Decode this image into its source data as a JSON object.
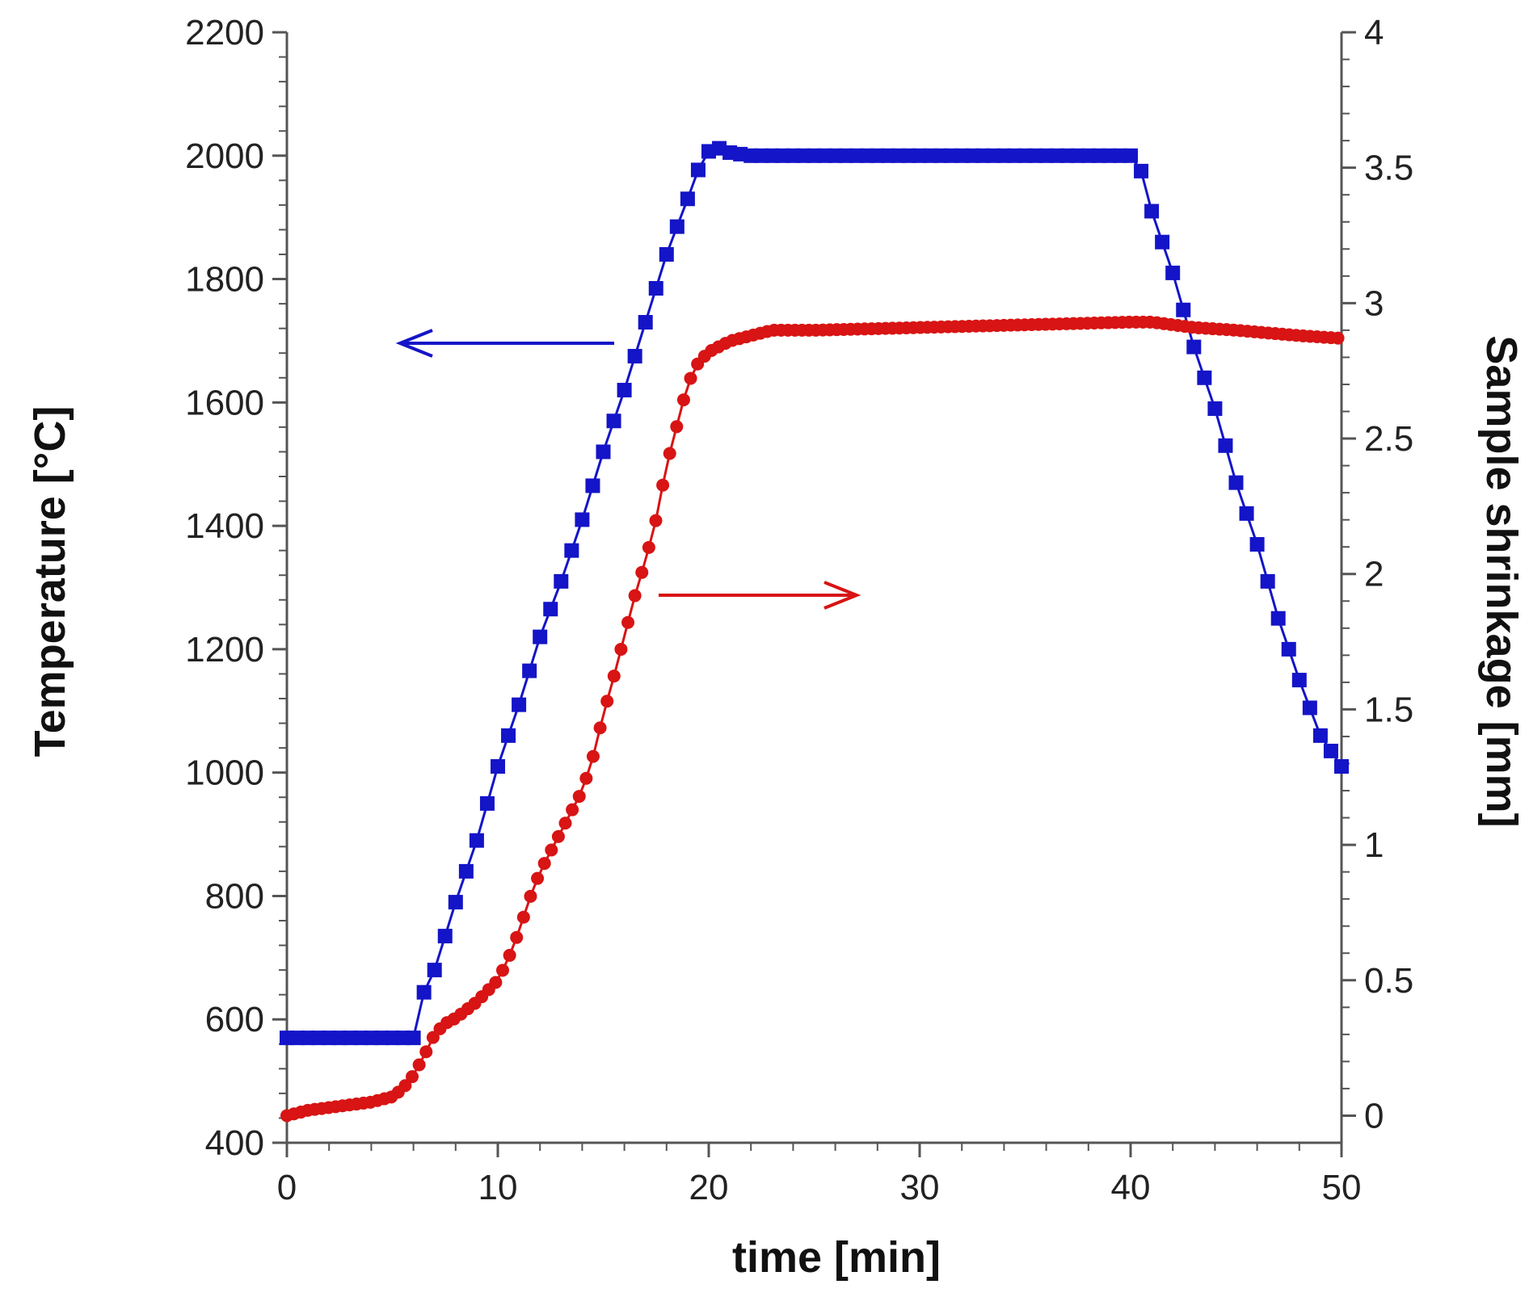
{
  "chart_data": {
    "type": "line",
    "title": "",
    "xlabel": "time [min]",
    "ylabel": "Temperature [°C]",
    "y2label": "Sample shrinkage [mm]",
    "xlim": [
      0,
      50
    ],
    "ylim": [
      400,
      2200
    ],
    "y2lim": [
      -0.1,
      4
    ],
    "xticks": [
      "0",
      "10",
      "20",
      "30",
      "40",
      "50"
    ],
    "yticks": [
      "400",
      "600",
      "800",
      "1000",
      "1200",
      "1400",
      "1600",
      "1800",
      "2000",
      "2200"
    ],
    "y2ticks": [
      "0",
      "0.5",
      "1",
      "1.5",
      "2",
      "2.5",
      "3",
      "3.5",
      "4"
    ],
    "grid": false,
    "series": [
      {
        "name": "Temperature",
        "axis": "left",
        "color": "#1414c8",
        "marker": "square",
        "points": [
          [
            0,
            570
          ],
          [
            5,
            570
          ],
          [
            6,
            570
          ],
          [
            6.1,
            615
          ],
          [
            7,
            680
          ],
          [
            8,
            790
          ],
          [
            9,
            890
          ],
          [
            10,
            1010
          ],
          [
            11,
            1110
          ],
          [
            12,
            1220
          ],
          [
            13,
            1310
          ],
          [
            14,
            1410
          ],
          [
            15,
            1520
          ],
          [
            16,
            1620
          ],
          [
            17,
            1730
          ],
          [
            18,
            1840
          ],
          [
            19,
            1930
          ],
          [
            19.8,
            2005
          ],
          [
            20.5,
            2012
          ],
          [
            21,
            2005
          ],
          [
            22,
            2000
          ],
          [
            30,
            2000
          ],
          [
            40,
            2000
          ],
          [
            40.5,
            1975
          ],
          [
            41,
            1910
          ],
          [
            42,
            1810
          ],
          [
            43,
            1690
          ],
          [
            44,
            1590
          ],
          [
            45,
            1470
          ],
          [
            46,
            1370
          ],
          [
            47,
            1250
          ],
          [
            48,
            1150
          ],
          [
            49,
            1060
          ],
          [
            50,
            1010
          ]
        ]
      },
      {
        "name": "Sample shrinkage",
        "axis": "right",
        "color": "#d81414",
        "marker": "circle",
        "points": [
          [
            0,
            0
          ],
          [
            1,
            0.02
          ],
          [
            2,
            0.03
          ],
          [
            3,
            0.04
          ],
          [
            4,
            0.05
          ],
          [
            5,
            0.07
          ],
          [
            5.5,
            0.1
          ],
          [
            6,
            0.15
          ],
          [
            6.5,
            0.22
          ],
          [
            7,
            0.3
          ],
          [
            7.5,
            0.34
          ],
          [
            8,
            0.36
          ],
          [
            9,
            0.42
          ],
          [
            10,
            0.5
          ],
          [
            10.5,
            0.58
          ],
          [
            11,
            0.68
          ],
          [
            11.5,
            0.8
          ],
          [
            12,
            0.9
          ],
          [
            13,
            1.05
          ],
          [
            14,
            1.2
          ],
          [
            14.5,
            1.32
          ],
          [
            15,
            1.48
          ],
          [
            15.5,
            1.62
          ],
          [
            16,
            1.77
          ],
          [
            16.5,
            1.92
          ],
          [
            17,
            2.05
          ],
          [
            17.5,
            2.2
          ],
          [
            18,
            2.4
          ],
          [
            18.5,
            2.55
          ],
          [
            19,
            2.7
          ],
          [
            19.5,
            2.78
          ],
          [
            20,
            2.82
          ],
          [
            21,
            2.86
          ],
          [
            22,
            2.88
          ],
          [
            23,
            2.9
          ],
          [
            25,
            2.9
          ],
          [
            30,
            2.91
          ],
          [
            35,
            2.92
          ],
          [
            40,
            2.93
          ],
          [
            41,
            2.93
          ],
          [
            42,
            2.92
          ],
          [
            43,
            2.91
          ],
          [
            45,
            2.9
          ],
          [
            48,
            2.88
          ],
          [
            50,
            2.87
          ]
        ]
      }
    ],
    "annotations": [
      {
        "type": "arrow",
        "direction": "left",
        "series": "Temperature",
        "color": "#1414c8"
      },
      {
        "type": "arrow",
        "direction": "right",
        "series": "Sample shrinkage",
        "color": "#d81414"
      }
    ]
  }
}
